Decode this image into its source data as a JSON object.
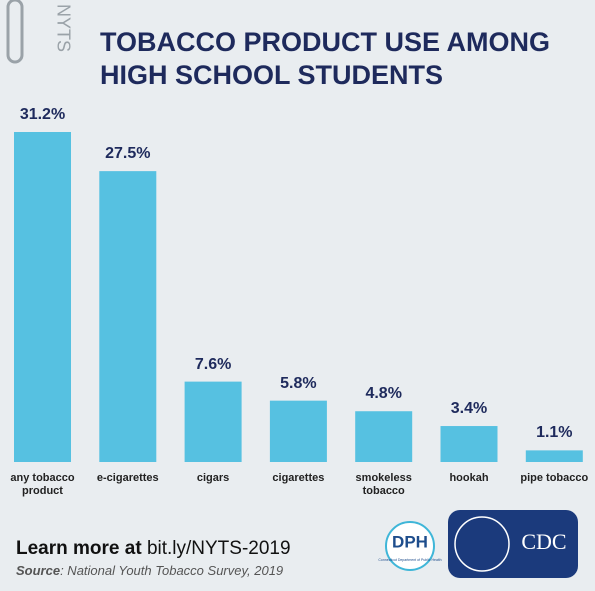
{
  "chart_data": {
    "type": "bar",
    "title": "TOBACCO PRODUCT USE AMONG HIGH SCHOOL STUDENTS",
    "categories": [
      "any tobacco product",
      "e-cigarettes",
      "cigars",
      "cigarettes",
      "smokeless tobacco",
      "hookah",
      "pipe tobacco"
    ],
    "values": [
      31.2,
      27.5,
      7.6,
      5.8,
      4.8,
      3.4,
      1.1
    ],
    "value_labels": [
      "31.2%",
      "27.5%",
      "7.6%",
      "5.8%",
      "4.8%",
      "3.4%",
      "1.1%"
    ],
    "color": "#56c1e1"
  },
  "footer": {
    "learn_more": "Learn more at",
    "url": "bit.ly/NYTS-2019",
    "source_label": "Source",
    "source_text": ": National Youth Tobacco Survey, 2019"
  },
  "logos": {
    "nyts": "NYTS",
    "dph": "DPH",
    "dph_name": "Connecticut Department of Public Health",
    "cdc": "CDC"
  }
}
